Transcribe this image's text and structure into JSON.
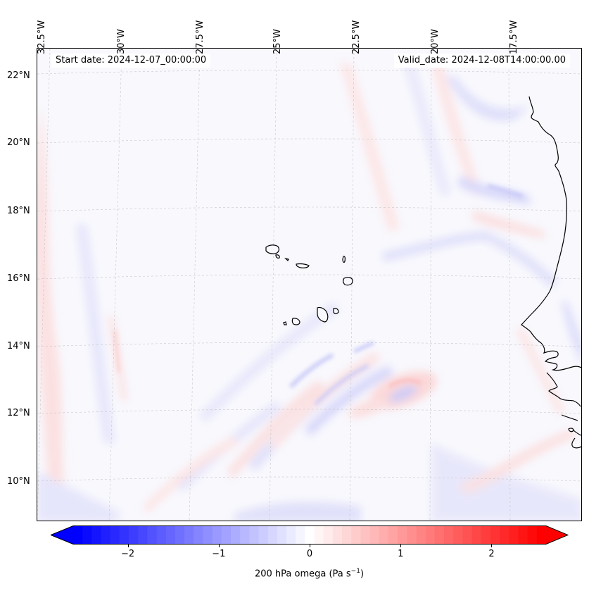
{
  "header": {
    "start_date": "Start date: 2024-12-07_00:00:00",
    "valid_date": "Valid_date: 2024-12-08T14:00:00.00"
  },
  "axes": {
    "lon_labels": [
      "32.5°W",
      "30°W",
      "27.5°W",
      "25°W",
      "22.5°W",
      "20°W",
      "17.5°W"
    ],
    "lat_labels": [
      "22°N",
      "20°N",
      "18°N",
      "16°N",
      "14°N",
      "12°N",
      "10°N"
    ]
  },
  "colorbar": {
    "ticks": [
      "−2",
      "−1",
      "0",
      "1",
      "2"
    ],
    "label_prefix": "200 hPa omega (Pa s",
    "label_exp": "−1",
    "label_suffix": ")",
    "range": [
      -2.6,
      2.6
    ],
    "cmap": "bwr",
    "colors": {
      "neg": "#0000ff",
      "mid": "#ffffff",
      "pos": "#ff0000"
    }
  }
}
